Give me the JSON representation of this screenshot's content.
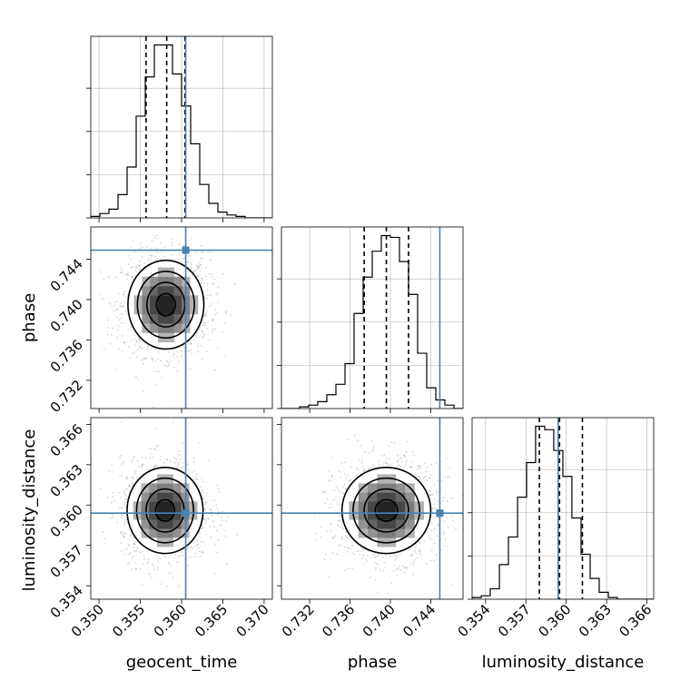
{
  "chart_data": {
    "type": "corner",
    "parameters": [
      "geocent_time",
      "phase",
      "luminosity_distance"
    ],
    "axis_labels": {
      "geocent_time": "geocent_time",
      "phase": "phase",
      "luminosity_distance": "luminosity_distance"
    },
    "ranges": {
      "geocent_time": [
        0.349,
        0.371
      ],
      "phase": [
        0.7292,
        0.7472
      ],
      "luminosity_distance": [
        0.353,
        0.3665
      ]
    },
    "ticks": {
      "geocent_time": {
        "values": [
          0.35,
          0.355,
          0.36,
          0.365,
          0.37
        ],
        "labels": [
          "0.350",
          "0.355",
          "0.360",
          "0.365",
          "0.370"
        ]
      },
      "phase": {
        "values": [
          0.732,
          0.736,
          0.74,
          0.744
        ],
        "labels": [
          "0.732",
          "0.736",
          "0.740",
          "0.744"
        ]
      },
      "luminosity_distance": {
        "values": [
          0.354,
          0.357,
          0.36,
          0.363,
          0.366
        ],
        "labels": [
          "0.354",
          "0.357",
          "0.360",
          "0.363",
          "0.366"
        ]
      }
    },
    "truths": {
      "geocent_time": 0.3605,
      "phase": 0.7449,
      "luminosity_distance": 0.3594
    },
    "quantiles": {
      "geocent_time": [
        0.3557,
        0.3582,
        0.3604
      ],
      "phase": [
        0.7374,
        0.7396,
        0.7418
      ],
      "luminosity_distance": [
        0.358,
        0.3595,
        0.3612
      ]
    },
    "histograms": {
      "geocent_time": {
        "edges": [
          0.349,
          0.3501,
          0.3512,
          0.3523,
          0.3534,
          0.3545,
          0.3556,
          0.3567,
          0.3578,
          0.3589,
          0.36,
          0.3611,
          0.3622,
          0.3633,
          0.3644,
          0.3655,
          0.3666,
          0.3677,
          0.3688,
          0.3699,
          0.371
        ],
        "counts": [
          1,
          3,
          6,
          16,
          35,
          70,
          97,
          119,
          119,
          99,
          77,
          51,
          23,
          10,
          4,
          2,
          1,
          0,
          0,
          0
        ]
      },
      "phase": {
        "edges": [
          0.7292,
          0.7301,
          0.731,
          0.7319,
          0.7328,
          0.7337,
          0.7346,
          0.7355,
          0.7364,
          0.7373,
          0.7382,
          0.7391,
          0.74,
          0.7409,
          0.7418,
          0.7427,
          0.7436,
          0.7445,
          0.7454,
          0.7463,
          0.7472
        ],
        "counts": [
          0,
          0,
          1,
          2,
          4,
          8,
          14,
          26,
          55,
          76,
          91,
          100,
          99,
          85,
          66,
          32,
          12,
          5,
          2,
          0
        ]
      },
      "luminosity_distance": {
        "edges": [
          0.353,
          0.35368,
          0.35435,
          0.35503,
          0.3557,
          0.35638,
          0.35705,
          0.35772,
          0.3584,
          0.35907,
          0.35975,
          0.36042,
          0.3611,
          0.36178,
          0.36245,
          0.36313,
          0.3638,
          0.36448,
          0.36515,
          0.36583,
          0.3665
        ],
        "counts": [
          1,
          2,
          6,
          20,
          36,
          59,
          79,
          100,
          98,
          86,
          71,
          47,
          26,
          12,
          4,
          1,
          0,
          0,
          0,
          0
        ]
      }
    },
    "posterior_2d": {
      "phase_vs_geocent_time": {
        "center": [
          0.3581,
          0.7395
        ],
        "sigma": [
          0.0023,
          0.0022
        ],
        "contour_levels_sigma": [
          0.5,
          1.0,
          1.5,
          2.0
        ]
      },
      "luminosity_distance_vs_geocent_time": {
        "center": [
          0.358,
          0.3596
        ],
        "sigma": [
          0.0023,
          0.0016
        ],
        "contour_levels_sigma": [
          0.5,
          1.0,
          1.5,
          2.0
        ]
      },
      "luminosity_distance_vs_phase": {
        "center": [
          0.7396,
          0.3596
        ],
        "sigma": [
          0.0022,
          0.0016
        ],
        "contour_levels_sigma": [
          0.5,
          1.0,
          1.5,
          2.0
        ]
      }
    },
    "colors": {
      "truth": "#4682b4",
      "histogram": "#000000",
      "grid": "#b0b0b0",
      "samples": "#888888"
    }
  }
}
